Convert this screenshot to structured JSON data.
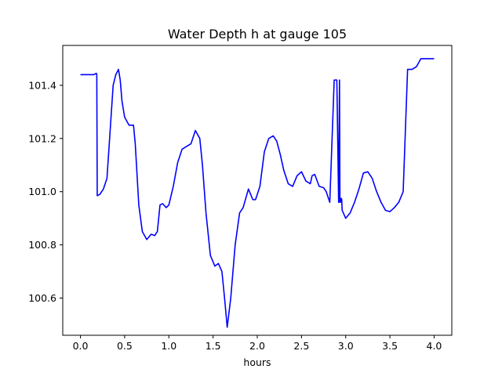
{
  "chart_data": {
    "type": "line",
    "title": "Water Depth h at gauge 105",
    "xlabel": "hours",
    "ylabel": "",
    "xlim": [
      -0.2,
      4.2
    ],
    "ylim": [
      100.46,
      101.55
    ],
    "grid": false,
    "legend": "none",
    "xticks": [
      0.0,
      0.5,
      1.0,
      1.5,
      2.0,
      2.5,
      3.0,
      3.5,
      4.0
    ],
    "xtick_labels": [
      "0.0",
      "0.5",
      "1.0",
      "1.5",
      "2.0",
      "2.5",
      "3.0",
      "3.5",
      "4.0"
    ],
    "yticks": [
      100.6,
      100.8,
      101.0,
      101.2,
      101.4
    ],
    "ytick_labels": [
      "100.6",
      "100.8",
      "101.0",
      "101.2",
      "101.4"
    ],
    "colors": {
      "series": "#0000ff",
      "axes": "#000000",
      "background": "#ffffff"
    },
    "series": [
      {
        "x": [
          0.0,
          0.15,
          0.18,
          0.185,
          0.19,
          0.22,
          0.26,
          0.3,
          0.33,
          0.37,
          0.4,
          0.43,
          0.45,
          0.47,
          0.5,
          0.55,
          0.6,
          0.62,
          0.66,
          0.7,
          0.75,
          0.8,
          0.84,
          0.87,
          0.9,
          0.93,
          0.97,
          1.0,
          1.05,
          1.1,
          1.15,
          1.2,
          1.25,
          1.3,
          1.35,
          1.38,
          1.42,
          1.47,
          1.52,
          1.56,
          1.6,
          1.63,
          1.66,
          1.7,
          1.75,
          1.8,
          1.84,
          1.9,
          1.95,
          1.98,
          2.03,
          2.08,
          2.13,
          2.18,
          2.22,
          2.26,
          2.3,
          2.35,
          2.4,
          2.45,
          2.5,
          2.55,
          2.6,
          2.62,
          2.65,
          2.7,
          2.75,
          2.78,
          2.82,
          2.87,
          2.9,
          2.92,
          2.93,
          2.935,
          2.94,
          2.945,
          2.95,
          2.955,
          2.96,
          3.0,
          3.05,
          3.1,
          3.15,
          3.2,
          3.25,
          3.3,
          3.35,
          3.4,
          3.45,
          3.5,
          3.55,
          3.6,
          3.65,
          3.7,
          3.75,
          3.8,
          3.85,
          3.9,
          3.93,
          3.935,
          3.96,
          4.0
        ],
        "y": [
          101.44,
          101.44,
          101.445,
          101.44,
          100.985,
          100.99,
          101.01,
          101.05,
          101.2,
          101.4,
          101.44,
          101.46,
          101.42,
          101.34,
          101.28,
          101.25,
          101.25,
          101.18,
          100.95,
          100.85,
          100.82,
          100.84,
          100.835,
          100.85,
          100.95,
          100.955,
          100.94,
          100.95,
          101.02,
          101.11,
          101.16,
          101.17,
          101.18,
          101.23,
          101.2,
          101.1,
          100.92,
          100.76,
          100.72,
          100.73,
          100.7,
          100.6,
          100.49,
          100.6,
          100.8,
          100.92,
          100.94,
          101.01,
          100.97,
          100.97,
          101.02,
          101.15,
          101.2,
          101.21,
          101.19,
          101.14,
          101.08,
          101.03,
          101.02,
          101.06,
          101.075,
          101.04,
          101.03,
          101.06,
          101.065,
          101.02,
          101.015,
          101.0,
          100.96,
          101.42,
          101.42,
          100.96,
          101.42,
          100.96,
          100.96,
          100.97,
          100.975,
          100.97,
          100.93,
          100.9,
          100.92,
          100.96,
          101.01,
          101.07,
          101.075,
          101.05,
          101.0,
          100.96,
          100.93,
          100.925,
          100.94,
          100.96,
          101.0,
          101.46,
          101.46,
          101.47,
          101.5,
          101.5,
          101.5,
          101.5,
          101.5,
          101.5
        ]
      }
    ]
  }
}
